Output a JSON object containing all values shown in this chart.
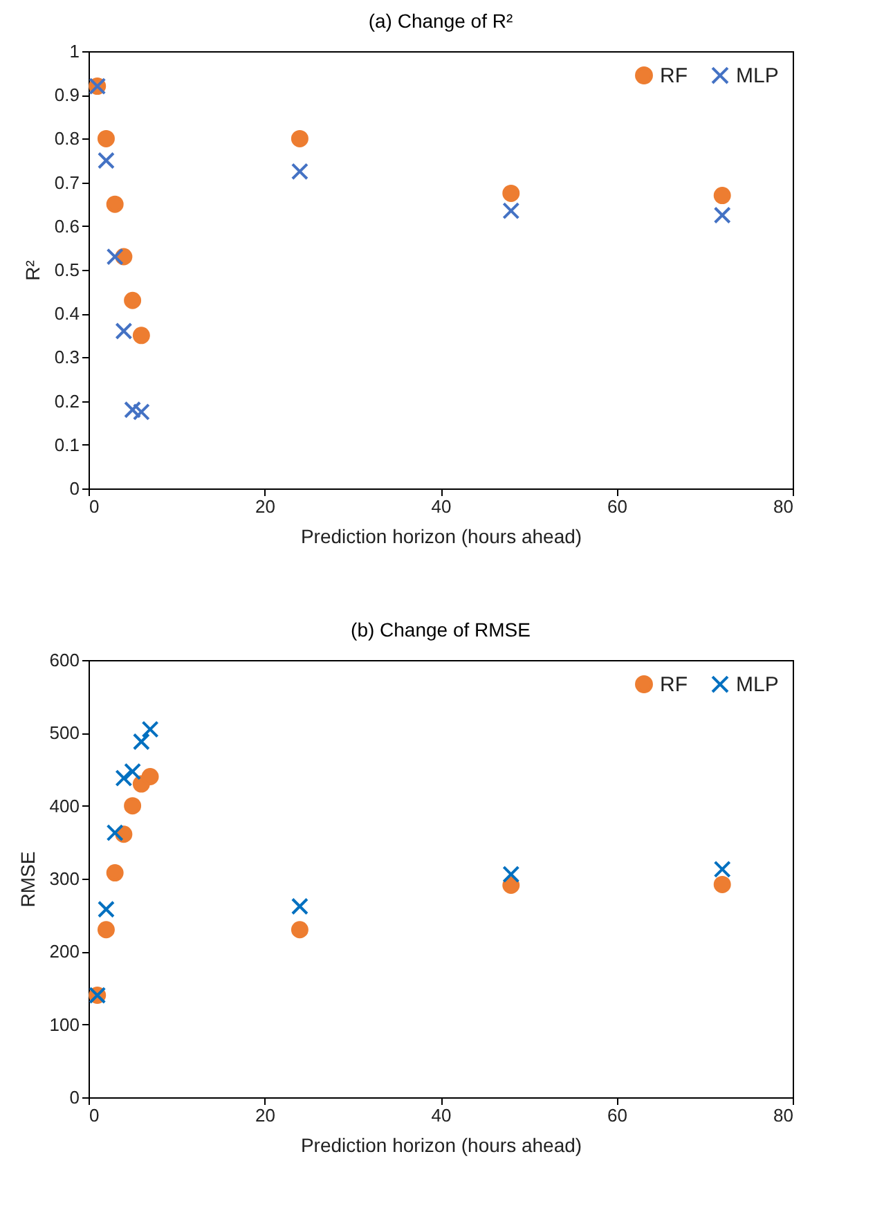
{
  "chart_data": [
    {
      "type": "scatter",
      "title": "(a) Change of R²",
      "xlabel": "Prediction horizon (hours ahead)",
      "ylabel": "R²",
      "x": [
        1,
        2,
        3,
        4,
        5,
        6,
        24,
        48,
        72
      ],
      "xlim": [
        0,
        80
      ],
      "xticks": [
        0,
        20,
        40,
        60,
        80
      ],
      "ylim": [
        0,
        1
      ],
      "yticks": [
        0,
        0.1,
        0.2,
        0.3,
        0.4,
        0.5,
        0.6,
        0.7,
        0.8,
        0.9,
        1
      ],
      "legend": "top right",
      "grid": false,
      "series": [
        {
          "name": "RF",
          "color": "#ed7d31",
          "marker": "circle",
          "values": [
            0.92,
            0.8,
            0.65,
            0.53,
            0.43,
            0.35,
            0.8,
            0.675,
            0.67
          ]
        },
        {
          "name": "MLP",
          "color": "#4472c4",
          "marker": "cross",
          "values": [
            0.92,
            0.75,
            0.53,
            0.36,
            0.18,
            0.175,
            0.725,
            0.635,
            0.625
          ]
        }
      ]
    },
    {
      "type": "scatter",
      "title": "(b) Change of RMSE",
      "xlabel": "Prediction horizon (hours ahead)",
      "ylabel": "RMSE",
      "x": [
        1,
        2,
        3,
        4,
        5,
        6,
        7,
        24,
        48,
        72
      ],
      "xlim": [
        0,
        80
      ],
      "xticks": [
        0,
        20,
        40,
        60,
        80
      ],
      "ylim": [
        0,
        600
      ],
      "yticks": [
        0,
        100,
        200,
        300,
        400,
        500,
        600
      ],
      "legend": "top right",
      "grid": false,
      "series": [
        {
          "name": "RF",
          "color": "#ed7d31",
          "marker": "circle",
          "values": [
            140,
            230,
            308,
            361,
            400,
            430,
            440,
            230,
            291,
            292
          ]
        },
        {
          "name": "MLP",
          "color": "#0070c0",
          "marker": "cross",
          "values": [
            140,
            258,
            363,
            438,
            447,
            488,
            505,
            262,
            306,
            313
          ]
        }
      ]
    }
  ]
}
